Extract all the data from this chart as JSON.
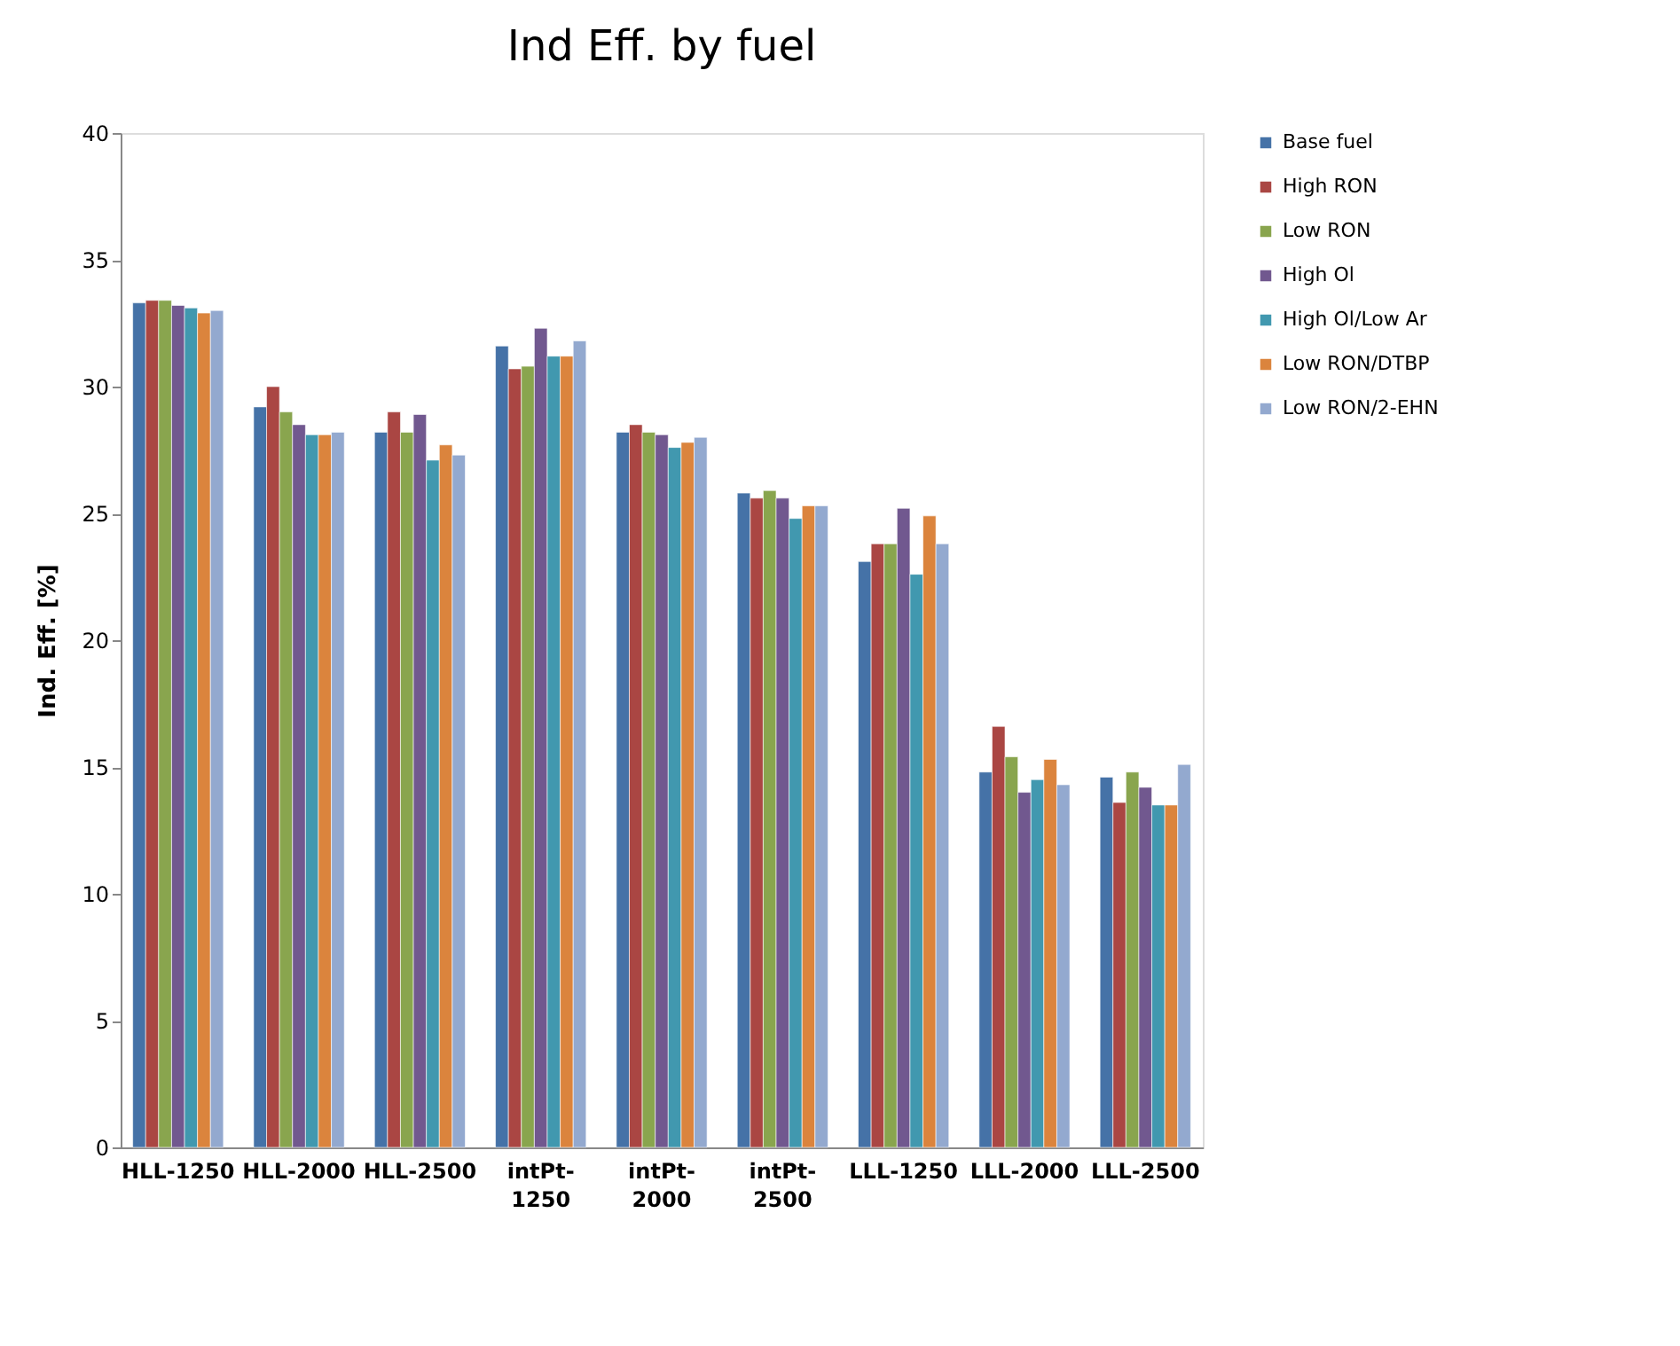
{
  "chart_data": {
    "type": "bar",
    "title": "Ind Eff. by fuel",
    "ylabel": "Ind. Eff. [%]",
    "categories": [
      "HLL-1250",
      "HLL-2000",
      "HLL-2500",
      "intPt-1250",
      "intPt-2000",
      "intPt-2500",
      "LLL-1250",
      "LLL-2000",
      "LLL-2500"
    ],
    "series": [
      {
        "name": "Base fuel",
        "color": "#4572a7",
        "values": [
          33.3,
          29.2,
          28.2,
          31.6,
          28.2,
          25.8,
          23.1,
          14.8,
          14.6
        ]
      },
      {
        "name": "High RON",
        "color": "#aa4643",
        "values": [
          33.4,
          30.0,
          29.0,
          30.7,
          28.5,
          25.6,
          23.8,
          16.6,
          13.6
        ]
      },
      {
        "name": "Low RON",
        "color": "#89a54e",
        "values": [
          33.4,
          29.0,
          28.2,
          30.8,
          28.2,
          25.9,
          23.8,
          15.4,
          14.8
        ]
      },
      {
        "name": "High Ol",
        "color": "#71588f",
        "values": [
          33.2,
          28.5,
          28.9,
          32.3,
          28.1,
          25.6,
          25.2,
          14.0,
          14.2
        ]
      },
      {
        "name": "High Ol/Low Ar",
        "color": "#4198af",
        "values": [
          33.1,
          28.1,
          27.1,
          31.2,
          27.6,
          24.8,
          22.6,
          14.5,
          13.5
        ]
      },
      {
        "name": "Low RON/DTBP",
        "color": "#db843d",
        "values": [
          32.9,
          28.1,
          27.7,
          31.2,
          27.8,
          25.3,
          24.9,
          15.3,
          13.5
        ]
      },
      {
        "name": "Low RON/2-EHN",
        "color": "#93a9cf",
        "values": [
          33.0,
          28.2,
          27.3,
          31.8,
          28.0,
          25.3,
          23.8,
          14.3,
          15.1
        ]
      }
    ],
    "ylim": [
      0,
      40
    ],
    "yticks": [
      0,
      5,
      10,
      15,
      20,
      25,
      30,
      35,
      40
    ],
    "grid": false,
    "legend": "right"
  }
}
